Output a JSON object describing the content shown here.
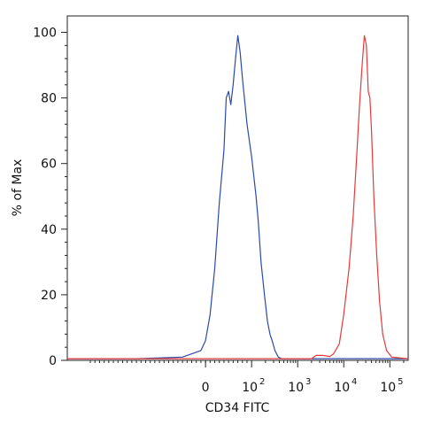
{
  "chart_data": {
    "type": "line",
    "title": "",
    "xlabel": "CD34 FITC",
    "ylabel": "% of Max",
    "ylim": [
      0,
      105
    ],
    "x_scale": "biexponential",
    "xlim": [
      -300,
      250000
    ],
    "x_ticks": [
      {
        "value": 0,
        "label": "0",
        "exp": ""
      },
      {
        "value": 100,
        "label": "10",
        "exp": "2"
      },
      {
        "value": 1000,
        "label": "10",
        "exp": "3"
      },
      {
        "value": 10000,
        "label": "10",
        "exp": "4"
      },
      {
        "value": 100000,
        "label": "10",
        "exp": "5"
      }
    ],
    "y_ticks": [
      0,
      20,
      40,
      60,
      80,
      100
    ],
    "grid": false,
    "series": [
      {
        "color": "#2b4aa8",
        "points": [
          [
            -300,
            0.5
          ],
          [
            -150,
            0.5
          ],
          [
            -50,
            1
          ],
          [
            -10,
            3
          ],
          [
            0,
            6
          ],
          [
            10,
            14
          ],
          [
            20,
            28
          ],
          [
            30,
            48
          ],
          [
            40,
            64
          ],
          [
            45,
            80
          ],
          [
            50,
            82
          ],
          [
            55,
            78
          ],
          [
            60,
            84
          ],
          [
            65,
            92
          ],
          [
            70,
            99
          ],
          [
            75,
            94
          ],
          [
            80,
            86
          ],
          [
            90,
            72
          ],
          [
            100,
            62
          ],
          [
            110,
            57
          ],
          [
            125,
            50
          ],
          [
            140,
            42
          ],
          [
            160,
            30
          ],
          [
            190,
            20
          ],
          [
            220,
            12
          ],
          [
            250,
            8
          ],
          [
            280,
            6
          ],
          [
            320,
            3
          ],
          [
            380,
            1
          ],
          [
            450,
            0.5
          ],
          [
            250000,
            0.5
          ]
        ]
      },
      {
        "color": "#e23b3b",
        "points": [
          [
            -300,
            0.5
          ],
          [
            2000,
            0.5
          ],
          [
            2500,
            1.5
          ],
          [
            3500,
            1.5
          ],
          [
            5000,
            1.2
          ],
          [
            6000,
            2
          ],
          [
            8000,
            5
          ],
          [
            10000,
            14
          ],
          [
            13000,
            28
          ],
          [
            16000,
            44
          ],
          [
            19000,
            62
          ],
          [
            22000,
            78
          ],
          [
            25000,
            90
          ],
          [
            28000,
            99
          ],
          [
            31000,
            96
          ],
          [
            34000,
            82
          ],
          [
            37000,
            80
          ],
          [
            40000,
            70
          ],
          [
            45000,
            50
          ],
          [
            52000,
            32
          ],
          [
            60000,
            18
          ],
          [
            70000,
            8
          ],
          [
            85000,
            3
          ],
          [
            110000,
            1
          ],
          [
            250000,
            0.5
          ]
        ]
      }
    ]
  }
}
